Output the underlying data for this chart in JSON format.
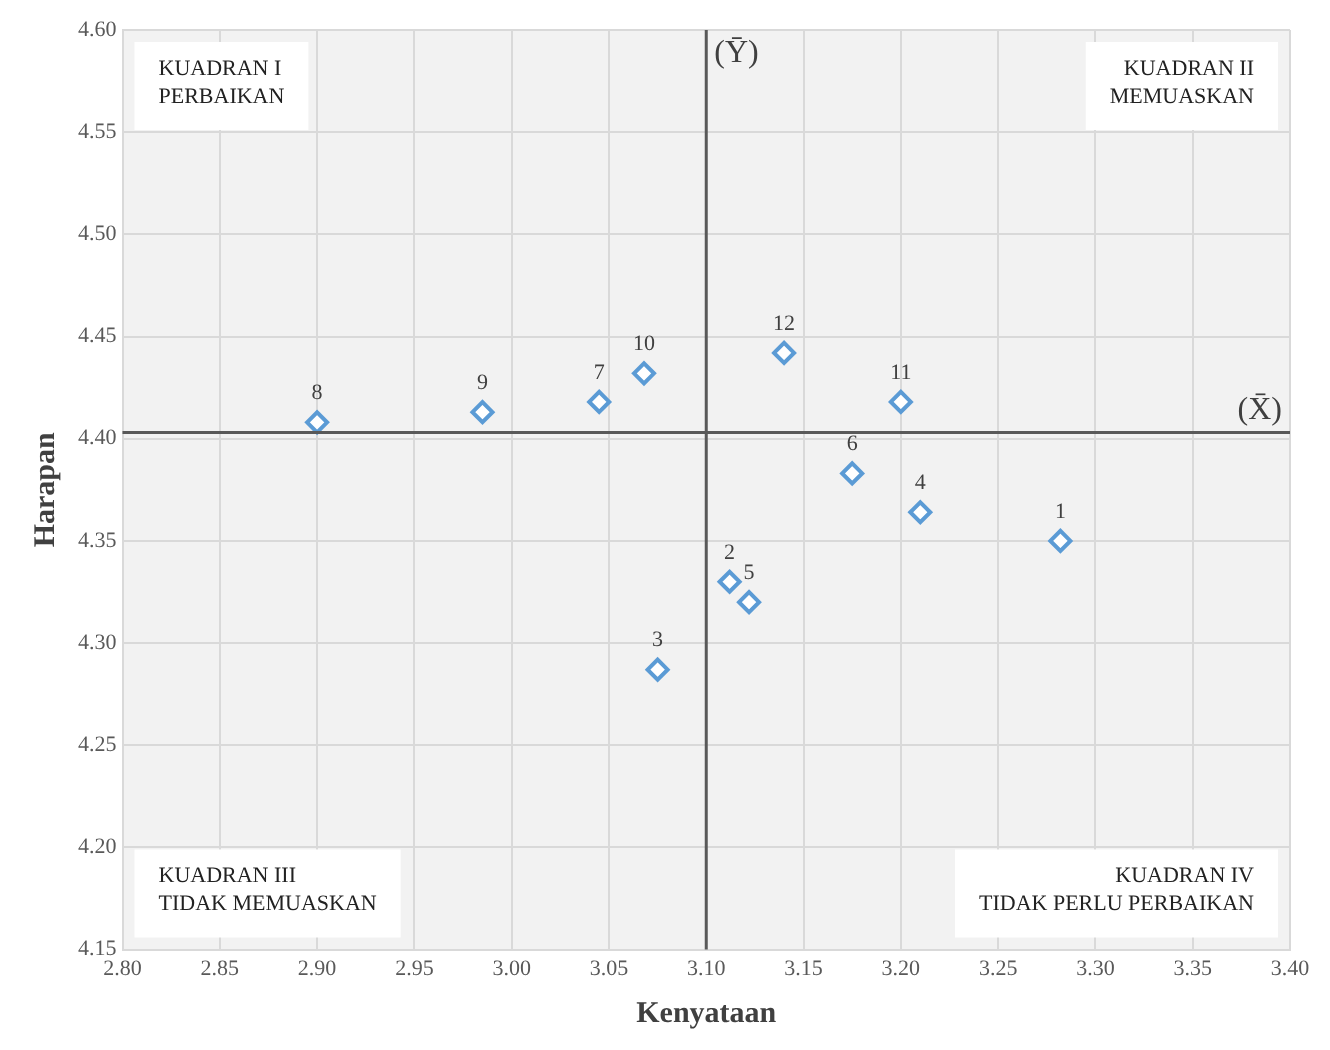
{
  "chart_data": {
    "type": "scatter",
    "xlabel": "Kenyataan",
    "ylabel": "Harapan",
    "xlim": [
      2.8,
      3.4
    ],
    "xticks": [
      {
        "value": 2.8,
        "label": "2.80"
      },
      {
        "value": 2.85,
        "label": "2.85"
      },
      {
        "value": 2.9,
        "label": "2.90"
      },
      {
        "value": 2.95,
        "label": "2.95"
      },
      {
        "value": 3.0,
        "label": "3.00"
      },
      {
        "value": 3.05,
        "label": "3.05"
      },
      {
        "value": 3.1,
        "label": "3.10"
      },
      {
        "value": 3.15,
        "label": "3.15"
      },
      {
        "value": 3.2,
        "label": "3.20"
      },
      {
        "value": 3.25,
        "label": "3.25"
      },
      {
        "value": 3.3,
        "label": "3.30"
      },
      {
        "value": 3.35,
        "label": "3.35"
      },
      {
        "value": 3.4,
        "label": "3.40"
      }
    ],
    "ylim": [
      4.15,
      4.6
    ],
    "yticks": [
      {
        "value": 4.15,
        "label": "4.15"
      },
      {
        "value": 4.2,
        "label": "4.20"
      },
      {
        "value": 4.25,
        "label": "4.25"
      },
      {
        "value": 4.3,
        "label": "4.30"
      },
      {
        "value": 4.35,
        "label": "4.35"
      },
      {
        "value": 4.4,
        "label": "4.40"
      },
      {
        "value": 4.45,
        "label": "4.45"
      },
      {
        "value": 4.5,
        "label": "4.50"
      },
      {
        "value": 4.55,
        "label": "4.55"
      },
      {
        "value": 4.6,
        "label": "4.60"
      }
    ],
    "series": [
      {
        "color": "#5b9bd5",
        "x": [
          3.282,
          3.112,
          3.075,
          3.21,
          3.122,
          3.175,
          3.045,
          2.9,
          2.985,
          3.068,
          3.2,
          3.14
        ],
        "values": [
          4.35,
          4.33,
          4.287,
          4.364,
          4.32,
          4.383,
          4.418,
          4.408,
          4.413,
          4.432,
          4.418,
          4.442
        ]
      }
    ],
    "marker": "diamond",
    "grid": true,
    "legend": false,
    "ref_lines": [
      {
        "axis": "x",
        "value": 3.1,
        "label": "(Ȳ)",
        "color": "#595959"
      },
      {
        "axis": "y",
        "value": 4.403,
        "label": "(X̄)",
        "color": "#595959"
      }
    ],
    "annotations": [
      {
        "text": "1",
        "x": 3.282,
        "y": 4.35
      },
      {
        "text": "2",
        "x": 3.112,
        "y": 4.33
      },
      {
        "text": "3",
        "x": 3.075,
        "y": 4.287
      },
      {
        "text": "4",
        "x": 3.21,
        "y": 4.364
      },
      {
        "text": "5",
        "x": 3.122,
        "y": 4.32
      },
      {
        "text": "6",
        "x": 3.175,
        "y": 4.383
      },
      {
        "text": "7",
        "x": 3.045,
        "y": 4.418
      },
      {
        "text": "8",
        "x": 2.9,
        "y": 4.408
      },
      {
        "text": "9",
        "x": 2.985,
        "y": 4.413
      },
      {
        "text": "10",
        "x": 3.068,
        "y": 4.432
      },
      {
        "text": "11",
        "x": 3.2,
        "y": 4.418
      },
      {
        "text": "12",
        "x": 3.14,
        "y": 4.442
      },
      "KUADRAN I\nPERBAIKAN",
      "KUADRAN II\nMEMUASKAN",
      "KUADRAN III\nTIDAK MEMUASKAN",
      "KUADRAN IV\nTIDAK PERLU PERBAIKAN"
    ]
  }
}
